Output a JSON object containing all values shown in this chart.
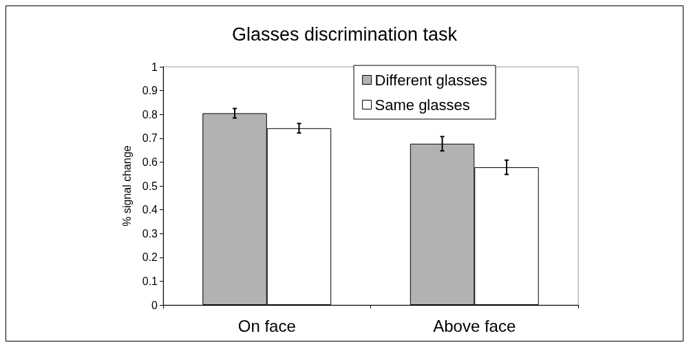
{
  "chart_data": {
    "type": "bar",
    "title": "Glasses discrimination task",
    "ylabel": "% signal change",
    "categories": [
      "On face",
      "Above face"
    ],
    "series": [
      {
        "name": "Different glasses",
        "color": "#b2b2b2",
        "values": [
          0.805,
          0.677
        ],
        "errors": [
          0.02,
          0.03
        ]
      },
      {
        "name": "Same glasses",
        "color": "#ffffff",
        "values": [
          0.742,
          0.578
        ],
        "errors": [
          0.02,
          0.03
        ]
      }
    ],
    "ylim": [
      0,
      1
    ],
    "yticks": [
      0,
      0.1,
      0.2,
      0.3,
      0.4,
      0.5,
      0.6,
      0.7,
      0.8,
      0.9,
      1
    ],
    "grid": false,
    "legend": "top right"
  }
}
